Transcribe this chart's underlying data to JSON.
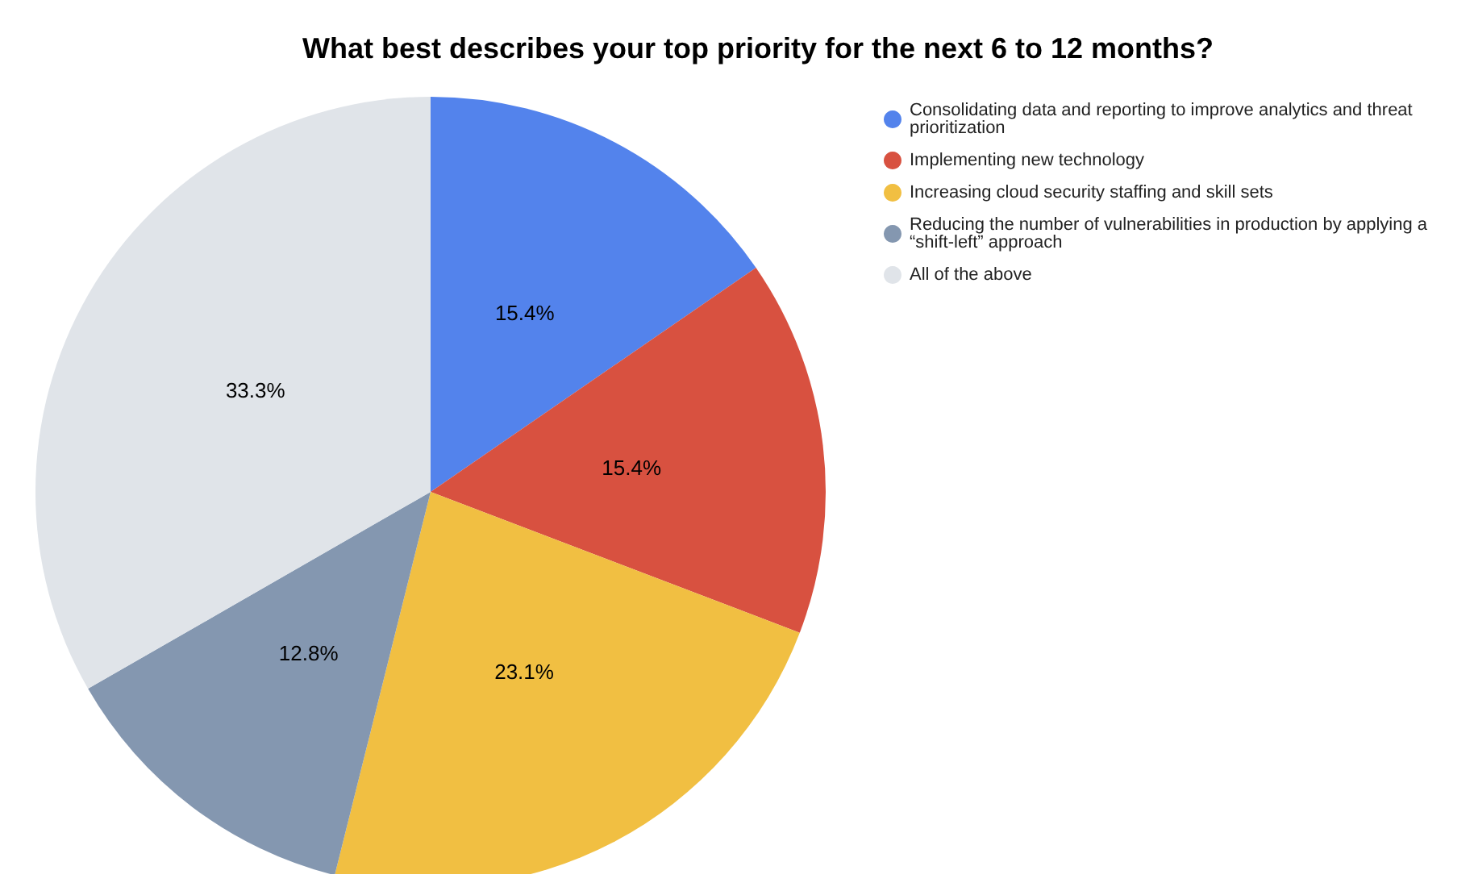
{
  "chart_data": {
    "type": "pie",
    "title": "What best describes your top priority for the next 6 to 12 months?",
    "categories": [
      "Consolidating data and reporting to improve analytics and threat prioritization",
      "Implementing new technology",
      "Increasing cloud security staffing and skill sets",
      "Reducing the number of vulnerabilities in production by applying a “shift-left” approach",
      "All of the above"
    ],
    "values": [
      15.4,
      15.4,
      23.1,
      12.8,
      33.3
    ],
    "colors": [
      "#5383ec",
      "#d85140",
      "#f1bf42",
      "#8497b0",
      "#e0e4e9"
    ],
    "value_labels": [
      "15.4%",
      "15.4%",
      "23.1%",
      "12.8%",
      "33.3%"
    ],
    "legend": "top right"
  }
}
